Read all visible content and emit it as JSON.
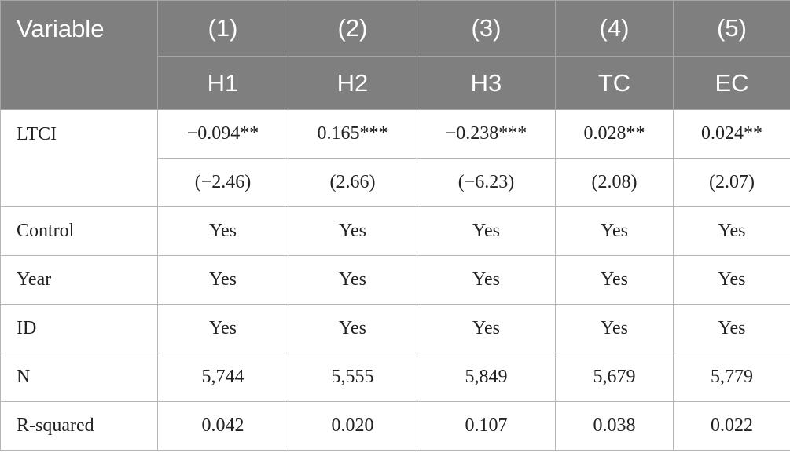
{
  "table": {
    "header": [
      [
        "Variable",
        "(1)",
        "(2)",
        "(3)",
        "(4)",
        "(5)"
      ],
      [
        "H1",
        "H2",
        "H3",
        "TC",
        "EC"
      ]
    ],
    "body": [
      [
        "LTCI",
        "−0.094**",
        "0.165***",
        "−0.238***",
        "0.028**",
        "0.024**"
      ],
      [
        "(−2.46)",
        "(2.66)",
        "(−6.23)",
        "(2.08)",
        "(2.07)"
      ],
      [
        "Control",
        "Yes",
        "Yes",
        "Yes",
        "Yes",
        "Yes"
      ],
      [
        "Year",
        "Yes",
        "Yes",
        "Yes",
        "Yes",
        "Yes"
      ],
      [
        "ID",
        "Yes",
        "Yes",
        "Yes",
        "Yes",
        "Yes"
      ],
      [
        "N",
        "5,744",
        "5,555",
        "5,849",
        "5,679",
        "5,779"
      ],
      [
        "R-squared",
        "0.042",
        "0.020",
        "0.107",
        "0.038",
        "0.022"
      ]
    ]
  }
}
